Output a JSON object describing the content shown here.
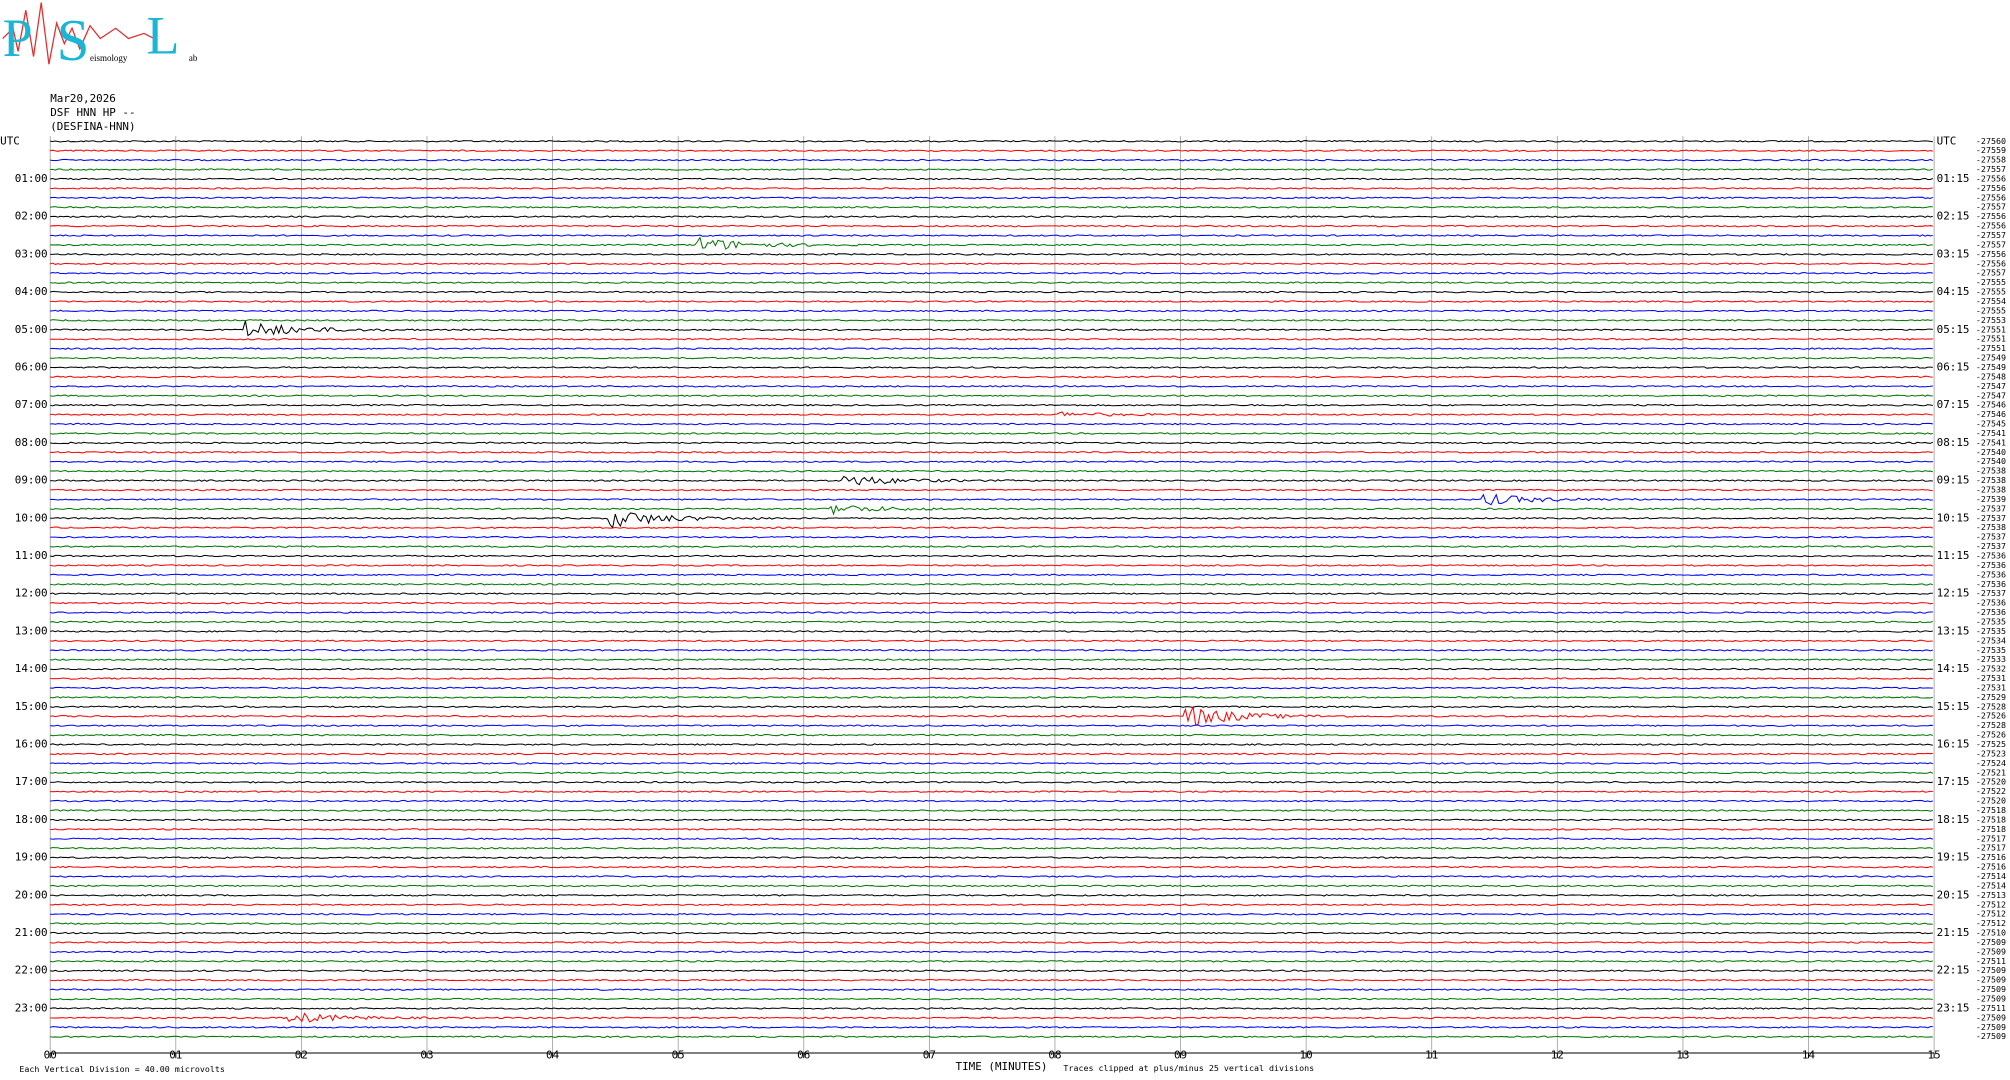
{
  "logo": {
    "letters": [
      "P",
      "S",
      "L"
    ],
    "words": [
      "eismology",
      "ab"
    ]
  },
  "header": {
    "date": "Mar20,2026",
    "station": "DSF HNN HP --",
    "name": "(DESFINA-HNN)"
  },
  "left_labels": [
    "UTC",
    "01:00",
    "02:00",
    "03:00",
    "04:00",
    "05:00",
    "06:00",
    "07:00",
    "08:00",
    "09:00",
    "10:00",
    "11:00",
    "12:00",
    "13:00",
    "14:00",
    "15:00",
    "16:00",
    "17:00",
    "18:00",
    "19:00",
    "20:00",
    "21:00",
    "22:00",
    "23:00"
  ],
  "right_labels": [
    "UTC",
    "01:15",
    "02:15",
    "03:15",
    "04:15",
    "05:15",
    "06:15",
    "07:15",
    "08:15",
    "09:15",
    "10:15",
    "11:15",
    "12:15",
    "13:15",
    "14:15",
    "15:15",
    "16:15",
    "17:15",
    "18:15",
    "19:15",
    "20:15",
    "21:15",
    "22:15",
    "23:15"
  ],
  "trace_offsets": [
    -27560,
    -27559,
    -27558,
    -27557,
    -27556,
    -27556,
    -27556,
    -27557,
    -27556,
    -27556,
    -27557,
    -27557,
    -27556,
    -27556,
    -27557,
    -27555,
    -27555,
    -27554,
    -27555,
    -27553,
    -27551,
    -27551,
    -27551,
    -27549,
    -27549,
    -27548,
    -27547,
    -27547,
    -27546,
    -27546,
    -27545,
    -27541,
    -27541,
    -27540,
    -27540,
    -27538,
    -27538,
    -27538,
    -27539,
    -27537,
    -27537,
    -27538,
    -27537,
    -27537,
    -27536,
    -27536,
    -27536,
    -27536,
    -27537,
    -27536,
    -27536,
    -27535,
    -27535,
    -27534,
    -27535,
    -27533,
    -27532,
    -27531,
    -27531,
    -27529,
    -27528,
    -27526,
    -27528,
    -27526,
    -27525,
    -27523,
    -27524,
    -27521,
    -27520,
    -27522,
    -27520,
    -27518,
    -27518,
    -27518,
    -27517,
    -27517,
    -27516,
    -27516,
    -27514,
    -27514,
    -27513,
    -27512,
    -27512,
    -27512,
    -27510,
    -27509,
    -27509,
    -27511,
    -27509,
    -27509,
    -27509,
    -27509,
    -27511,
    -27509,
    -27509,
    -27509
  ],
  "trace_colors": [
    "#000000",
    "#ff0000",
    "#0000ff",
    "#007700"
  ],
  "x_ticks": [
    "00",
    "01",
    "02",
    "03",
    "04",
    "05",
    "06",
    "07",
    "08",
    "09",
    "10",
    "11",
    "12",
    "13",
    "14",
    "15"
  ],
  "footer": {
    "scale": "Each Vertical Division =    40.00 microvolts",
    "axis_title": "TIME (MINUTES)",
    "clip_note": "Traces clipped at plus/minus 25 vertical divisions"
  }
}
